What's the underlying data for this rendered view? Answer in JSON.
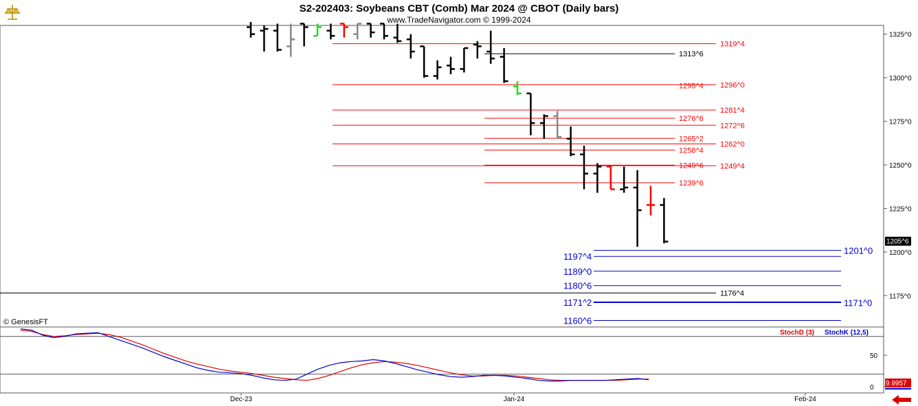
{
  "header": {
    "title": "S2-202403:  Soybeans CBT (Comb) Mar 2024 @ CBOT  (Daily bars)",
    "subtitle": "www.TradeNavigator.com © 1999-2024"
  },
  "footer": {
    "copyright": "© GenesisFT"
  },
  "colors": {
    "bar": "#000000",
    "up_bar": "#ff0000",
    "green_bar": "#22dd22",
    "gray_bar": "#888888",
    "red_level": "#dd0000",
    "blue_level": "#0000cc",
    "black_level": "#000000",
    "stochD": "#dd0000",
    "stochK": "#0000cc"
  },
  "chart_data": [
    {
      "type": "bar",
      "subtype": "ohlc",
      "title": "S2-202403:  Soybeans CBT (Comb) Mar 2024 @ CBOT  (Daily bars)",
      "y_axis": {
        "ticks": [
          1175,
          1200,
          1225,
          1250,
          1275,
          1300,
          1325
        ],
        "tick_labels": [
          "1175^0",
          "1200^0",
          "1225^0",
          "1250^0",
          "1275^0",
          "1300^0",
          "1325^0"
        ],
        "ylim": [
          1157,
          1330
        ]
      },
      "x_axis": {
        "labels": [
          "Dec-23",
          "Jan-24",
          "Feb-24"
        ]
      },
      "last_price_label": "1205^6",
      "bars": [
        {
          "o": 1329,
          "h": 1332,
          "l": 1323,
          "c": 1325,
          "color": "black"
        },
        {
          "o": 1327,
          "h": 1330,
          "l": 1315,
          "c": 1328,
          "color": "black"
        },
        {
          "o": 1327,
          "h": 1331,
          "l": 1315,
          "c": 1316,
          "color": "black"
        },
        {
          "o": 1318,
          "h": 1331,
          "l": 1312,
          "c": 1322,
          "color": "gray"
        },
        {
          "o": 1331,
          "h": 1331,
          "l": 1318,
          "c": 1329,
          "color": "black"
        },
        {
          "o": 1324,
          "h": 1331,
          "l": 1324,
          "c": 1329,
          "color": "green"
        },
        {
          "o": 1327,
          "h": 1331,
          "l": 1322,
          "c": 1324,
          "color": "black"
        },
        {
          "o": 1331,
          "h": 1331,
          "l": 1323,
          "c": 1329,
          "color": "red"
        },
        {
          "o": 1325,
          "h": 1331,
          "l": 1322,
          "c": 1331,
          "color": "gray"
        },
        {
          "o": 1331,
          "h": 1331,
          "l": 1323,
          "c": 1326,
          "color": "black"
        },
        {
          "o": 1331,
          "h": 1331,
          "l": 1322,
          "c": 1324,
          "color": "black"
        },
        {
          "o": 1323,
          "h": 1331,
          "l": 1320,
          "c": 1321,
          "color": "black"
        },
        {
          "o": 1322,
          "h": 1325,
          "l": 1311,
          "c": 1315,
          "color": "black"
        },
        {
          "o": 1318,
          "h": 1318,
          "l": 1300,
          "c": 1301,
          "color": "black"
        },
        {
          "o": 1301,
          "h": 1310,
          "l": 1299,
          "c": 1306,
          "color": "black"
        },
        {
          "o": 1307,
          "h": 1312,
          "l": 1302,
          "c": 1305,
          "color": "black"
        },
        {
          "o": 1305,
          "h": 1317,
          "l": 1303,
          "c": 1317,
          "color": "black"
        },
        {
          "o": 1319,
          "h": 1321,
          "l": 1311,
          "c": 1318,
          "color": "black"
        },
        {
          "o": 1315,
          "h": 1327,
          "l": 1308,
          "c": 1311,
          "color": "black"
        },
        {
          "o": 1312,
          "h": 1317,
          "l": 1297,
          "c": 1298,
          "color": "black"
        },
        {
          "o": 1295,
          "h": 1298,
          "l": 1290,
          "c": 1291,
          "color": "green"
        },
        {
          "o": 1291,
          "h": 1291,
          "l": 1267,
          "c": 1274,
          "color": "black"
        },
        {
          "o": 1274,
          "h": 1279,
          "l": 1265,
          "c": 1278,
          "color": "black"
        },
        {
          "o": 1278,
          "h": 1281,
          "l": 1265,
          "c": 1266,
          "color": "gray"
        },
        {
          "o": 1265,
          "h": 1272,
          "l": 1255,
          "c": 1256,
          "color": "black"
        },
        {
          "o": 1256,
          "h": 1261,
          "l": 1236,
          "c": 1245,
          "color": "black"
        },
        {
          "o": 1245,
          "h": 1251,
          "l": 1234,
          "c": 1249,
          "color": "black"
        },
        {
          "o": 1249,
          "h": 1250,
          "l": 1236,
          "c": 1236,
          "color": "red"
        },
        {
          "o": 1236,
          "h": 1249,
          "l": 1234,
          "c": 1237,
          "color": "black"
        },
        {
          "o": 1237,
          "h": 1247,
          "l": 1203,
          "c": 1224,
          "color": "black"
        },
        {
          "o": 1227,
          "h": 1238,
          "l": 1221,
          "c": 1227,
          "color": "red"
        },
        {
          "o": 1227,
          "h": 1231,
          "l": 1205,
          "c": 1206,
          "color": "black"
        }
      ],
      "levels": [
        {
          "value": 1319.5,
          "label": "1319^4",
          "color": "red",
          "x0": 0.48,
          "x1": 0.96,
          "label_pos": "right"
        },
        {
          "value": 1313.75,
          "label": "1313^6",
          "color": "black",
          "x0": 0.72,
          "x1": 0.96,
          "label_pos": "mid"
        },
        {
          "value": 1296.0,
          "label": "1296^0",
          "color": "red",
          "x0": 0.48,
          "x1": 0.96,
          "label_pos": "right"
        },
        {
          "value": 1295.5,
          "label": "1295^4",
          "color": "red",
          "x0": 0.72,
          "x1": 0.72,
          "label_pos": "mid_only"
        },
        {
          "value": 1281.5,
          "label": "1281^4",
          "color": "red",
          "x0": 0.48,
          "x1": 0.96,
          "label_pos": "right"
        },
        {
          "value": 1276.75,
          "label": "1276^6",
          "color": "red",
          "x0": 0.72,
          "x1": 0.96,
          "label_pos": "mid"
        },
        {
          "value": 1272.75,
          "label": "1272^6",
          "color": "red",
          "x0": 0.48,
          "x1": 0.96,
          "label_pos": "right"
        },
        {
          "value": 1265.25,
          "label": "1265^2",
          "color": "red",
          "x0": 0.72,
          "x1": 0.96,
          "label_pos": "mid"
        },
        {
          "value": 1262.0,
          "label": "1262^0",
          "color": "red",
          "x0": 0.48,
          "x1": 0.96,
          "label_pos": "right"
        },
        {
          "value": 1258.5,
          "label": "1258^4",
          "color": "red",
          "x0": 0.72,
          "x1": 0.96,
          "label_pos": "mid"
        },
        {
          "value": 1249.75,
          "label": "1249^6",
          "color": "red",
          "x0": 0.72,
          "x1": 0.96,
          "label_pos": "mid"
        },
        {
          "value": 1249.5,
          "label": "1249^4",
          "color": "red",
          "x0": 0.48,
          "x1": 0.96,
          "label_pos": "right"
        },
        {
          "value": 1239.75,
          "label": "1239^6",
          "color": "red",
          "x0": 0.72,
          "x1": 0.96,
          "label_pos": "mid"
        },
        {
          "value": 1201.0,
          "label": "1201^0",
          "color": "blue",
          "x0": 0.86,
          "x1": 1.0,
          "label_pos": "far"
        },
        {
          "value": 1197.5,
          "label": "1197^4",
          "color": "blue",
          "x0": 0.86,
          "x1": 1.0,
          "label_pos": "left"
        },
        {
          "value": 1189.0,
          "label": "1189^0",
          "color": "blue",
          "x0": 0.86,
          "x1": 1.0,
          "label_pos": "left"
        },
        {
          "value": 1180.75,
          "label": "1180^6",
          "color": "blue",
          "x0": 0.86,
          "x1": 1.0,
          "label_pos": "left"
        },
        {
          "value": 1176.5,
          "label": "1176^4",
          "color": "black",
          "x0": 0.0,
          "x1": 0.86,
          "label_pos": "mid2"
        },
        {
          "value": 1171.25,
          "label": "1171^2",
          "color": "blue",
          "x0": 0.86,
          "x1": 1.0,
          "label_pos": "left"
        },
        {
          "value": 1171.0,
          "label": "1171^0",
          "color": "blue",
          "x0": 0.86,
          "x1": 1.0,
          "label_pos": "far"
        },
        {
          "value": 1160.75,
          "label": "1160^6",
          "color": "blue",
          "x0": 0.86,
          "x1": 1.0,
          "label_pos": "left"
        }
      ]
    },
    {
      "type": "line",
      "series": [
        {
          "name": "StochD (3)",
          "color": "#dd0000"
        },
        {
          "name": "StochK (12,5)",
          "color": "#0000cc"
        }
      ],
      "y_axis": {
        "ticks": [
          0,
          50
        ],
        "tick_labels": [
          "0",
          "50"
        ],
        "ylim": [
          -10,
          95
        ]
      },
      "reference_lines": [
        80,
        20
      ],
      "last_value_label": "9.9957",
      "stochD": [
        90,
        88,
        83,
        80,
        81,
        83,
        84,
        85,
        83,
        79,
        73,
        67,
        60,
        53,
        47,
        41,
        36,
        32,
        28,
        25,
        23,
        21,
        18,
        15,
        13,
        11,
        10,
        13,
        18,
        24,
        30,
        35,
        38,
        40,
        39,
        37,
        34,
        30,
        26,
        22,
        19,
        17,
        17,
        18,
        18,
        17,
        15,
        13,
        11,
        10,
        10,
        10,
        10,
        10,
        10,
        11,
        12,
        12
      ],
      "stochK": [
        92,
        90,
        82,
        78,
        80,
        84,
        85,
        86,
        80,
        74,
        68,
        62,
        55,
        48,
        42,
        36,
        30,
        26,
        23,
        22,
        21,
        18,
        14,
        11,
        10,
        12,
        20,
        28,
        34,
        38,
        40,
        41,
        43,
        41,
        37,
        32,
        27,
        23,
        19,
        16,
        15,
        16,
        18,
        18,
        17,
        15,
        13,
        10,
        9,
        9,
        10,
        10,
        10,
        10,
        11,
        12,
        13,
        11
      ]
    }
  ]
}
